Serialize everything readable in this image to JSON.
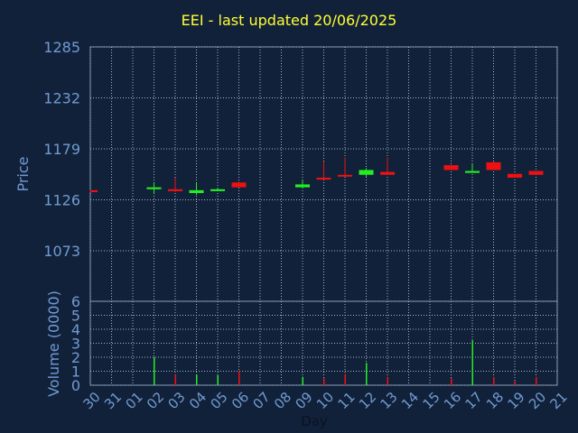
{
  "title": "EEI - last updated 20/06/2025",
  "colors": {
    "background": "#12213a",
    "axis_text": "#6f9bd2",
    "grid": "#a0b4cc",
    "up": "#22ee22",
    "down": "#ee1111",
    "title": "#ffff33"
  },
  "chart_data": [
    {
      "type": "candlestick",
      "ylabel": "Price",
      "ylim": [
        1073,
        1285
      ],
      "yticks": [
        1285,
        1232,
        1179,
        1126,
        1073
      ],
      "grid": true,
      "candles": [
        {
          "day": "30",
          "open": 1136,
          "close": 1134,
          "high": 1136,
          "low": 1134,
          "dir": "down"
        },
        {
          "day": "02",
          "open": 1137,
          "close": 1139,
          "high": 1144,
          "low": 1132,
          "dir": "up"
        },
        {
          "day": "03",
          "open": 1137,
          "close": 1135,
          "high": 1149,
          "low": 1134,
          "dir": "down"
        },
        {
          "day": "04",
          "open": 1133,
          "close": 1136,
          "high": 1144,
          "low": 1131,
          "dir": "up"
        },
        {
          "day": "05",
          "open": 1135,
          "close": 1137,
          "high": 1138,
          "low": 1135,
          "dir": "up"
        },
        {
          "day": "06",
          "open": 1144,
          "close": 1139,
          "high": 1145,
          "low": 1139,
          "dir": "down"
        },
        {
          "day": "09",
          "open": 1139,
          "close": 1142,
          "high": 1146,
          "low": 1138,
          "dir": "up"
        },
        {
          "day": "10",
          "open": 1149,
          "close": 1147,
          "high": 1166,
          "low": 1147,
          "dir": "down"
        },
        {
          "day": "11",
          "open": 1152,
          "close": 1151,
          "high": 1170,
          "low": 1151,
          "dir": "down"
        },
        {
          "day": "12",
          "open": 1152,
          "close": 1157,
          "high": 1159,
          "low": 1150,
          "dir": "up"
        },
        {
          "day": "13",
          "open": 1155,
          "close": 1152,
          "high": 1170,
          "low": 1152,
          "dir": "down"
        },
        {
          "day": "16",
          "open": 1162,
          "close": 1157,
          "high": 1162,
          "low": 1157,
          "dir": "down"
        },
        {
          "day": "17",
          "open": 1154,
          "close": 1156,
          "high": 1163,
          "low": 1154,
          "dir": "up"
        },
        {
          "day": "18",
          "open": 1165,
          "close": 1157,
          "high": 1166,
          "low": 1157,
          "dir": "down"
        },
        {
          "day": "19",
          "open": 1153,
          "close": 1149,
          "high": 1153,
          "low": 1149,
          "dir": "down"
        },
        {
          "day": "20",
          "open": 1156,
          "close": 1152,
          "high": 1156,
          "low": 1152,
          "dir": "down"
        }
      ]
    },
    {
      "type": "bar",
      "ylabel": "Volume (0000)",
      "xlabel": "Day",
      "ylim": [
        0,
        6
      ],
      "yticks": [
        0,
        1,
        2,
        3,
        4,
        5,
        6
      ],
      "categories": [
        "30",
        "31",
        "01",
        "02",
        "03",
        "04",
        "05",
        "06",
        "07",
        "08",
        "09",
        "10",
        "11",
        "12",
        "13",
        "14",
        "15",
        "16",
        "17",
        "18",
        "19",
        "20",
        "21"
      ],
      "values": [
        0,
        0,
        0,
        2.0,
        0.75,
        0.75,
        0.7,
        1.0,
        0,
        0,
        0.6,
        0.5,
        0.8,
        1.6,
        0.6,
        0,
        0,
        0.5,
        3.2,
        0.6,
        0.3,
        0.6,
        0
      ],
      "bar_dir": [
        "",
        "",
        "",
        "up",
        "down",
        "up",
        "up",
        "down",
        "",
        "",
        "up",
        "down",
        "down",
        "up",
        "down",
        "",
        "",
        "down",
        "up",
        "down",
        "down",
        "down",
        ""
      ]
    }
  ]
}
